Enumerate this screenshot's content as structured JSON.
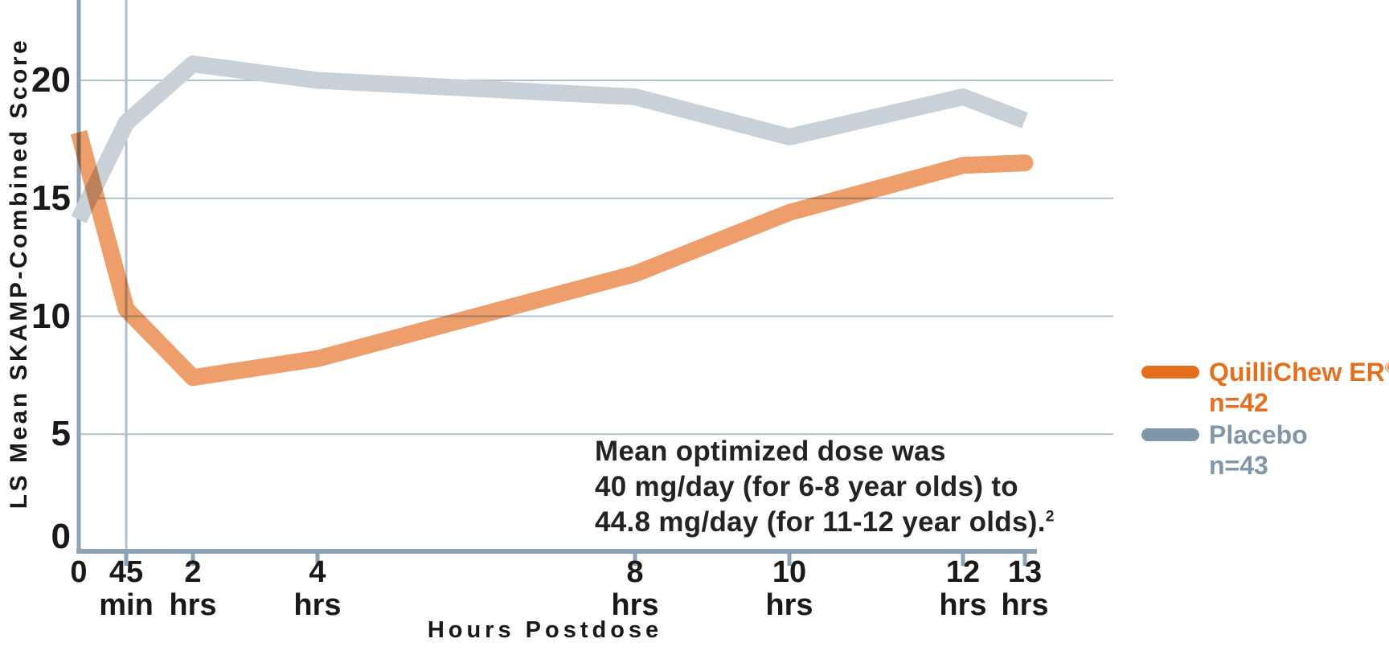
{
  "chart_data": {
    "type": "line",
    "title": "",
    "xlabel": "Hours Postdose",
    "ylabel": "LS Mean SKAMP-Combined Score",
    "categories": [
      "0",
      "45 min",
      "2 hrs",
      "4 hrs",
      "8 hrs",
      "10 hrs",
      "12 hrs",
      "13 hrs"
    ],
    "x_tick_labels": [
      {
        "num": "0",
        "unit": ""
      },
      {
        "num": "45",
        "unit": "min"
      },
      {
        "num": "2",
        "unit": "hrs"
      },
      {
        "num": "4",
        "unit": "hrs"
      },
      {
        "num": "8",
        "unit": "hrs"
      },
      {
        "num": "10",
        "unit": "hrs"
      },
      {
        "num": "12",
        "unit": "hrs"
      },
      {
        "num": "13",
        "unit": "hrs"
      }
    ],
    "y_ticks": [
      0,
      5,
      10,
      15,
      20
    ],
    "ylim": [
      0,
      23.4
    ],
    "grid": "horizontal gridlines at 5/10/15/20 plus full-height vertical gridline at 45 min",
    "legend_position": "right",
    "series": [
      {
        "name": "QuilliChew ER",
        "slug": "quillichew",
        "n": "n=42",
        "color": "#EE9E6B",
        "values": [
          17.8,
          10.3,
          7.4,
          8.2,
          11.8,
          14.4,
          16.4,
          16.5
        ]
      },
      {
        "name": "Placebo",
        "slug": "placebo",
        "n": "n=43",
        "color": "#C9D1D8",
        "values": [
          14.1,
          18.2,
          20.7,
          20.0,
          19.3,
          17.6,
          19.3,
          18.3
        ]
      }
    ],
    "grid_color": "#AFC2CC",
    "axis_color": "#8DA3B3"
  },
  "legend": {
    "items": [
      {
        "label": "QuilliChew ER",
        "reg": "®",
        "n": "n=42",
        "color": "#E4701F"
      },
      {
        "label": "Placebo",
        "reg": "",
        "n": "n=43",
        "color": "#8197A9"
      }
    ]
  },
  "annotation": {
    "line1": "Mean optimized dose was",
    "line2": "40 mg/day (for 6-8 year olds) to",
    "line3": "44.8 mg/day (for 11-12 year olds).",
    "superscript": "2"
  },
  "colors": {
    "text": "#1B1818",
    "annotation_text": "#262223"
  }
}
